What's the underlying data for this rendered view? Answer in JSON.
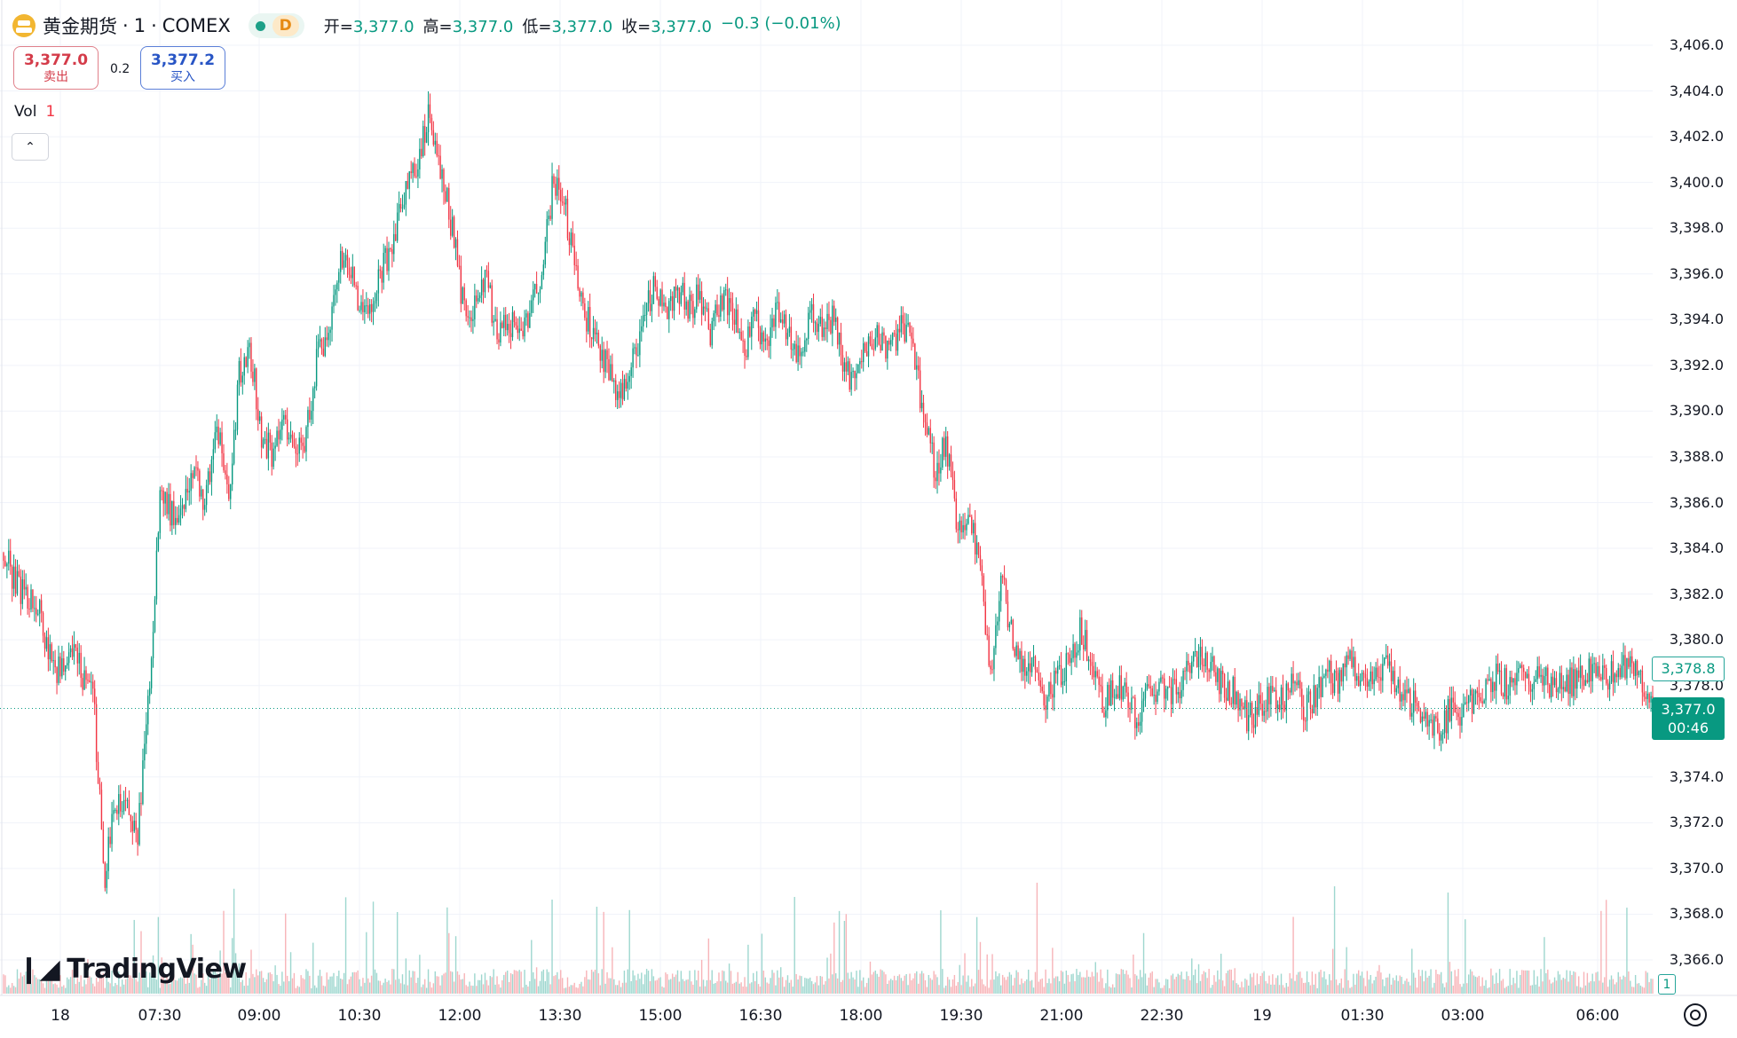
{
  "header": {
    "symbol": "黄金期货",
    "separator1": "·",
    "interval": "1",
    "separator2": "·",
    "exchange": "COMEX",
    "badge": "D",
    "ohlc": [
      {
        "key": "开=",
        "value": "3,377.0"
      },
      {
        "key": "高=",
        "value": "3,377.0"
      },
      {
        "key": "低=",
        "value": "3,377.0"
      },
      {
        "key": "收=",
        "value": "3,377.0"
      },
      {
        "key": "",
        "value": "−0.3 (−0.01%)"
      }
    ]
  },
  "trade": {
    "sell_price": "3,377.0",
    "sell_label": "卖出",
    "spread": "0.2",
    "buy_price": "3,377.2",
    "buy_label": "买入"
  },
  "volume_legend": {
    "label": "Vol",
    "value": "1"
  },
  "logo": {
    "text": "TradingView"
  },
  "price_labels": {
    "ref_price": "3,378.8",
    "current_price": "3,377.0",
    "countdown": "00:46",
    "volume_value": "1"
  },
  "colors": {
    "up": "#089981",
    "down": "#f23645",
    "up_vol": "#9ed7cf",
    "down_vol": "#f7b4b8",
    "grid": "#f0f3fa"
  },
  "chart_data": {
    "type": "candlestick",
    "yticks": [
      "3,406.0",
      "3,404.0",
      "3,402.0",
      "3,400.0",
      "3,398.0",
      "3,396.0",
      "3,394.0",
      "3,392.0",
      "3,390.0",
      "3,388.0",
      "3,386.0",
      "3,384.0",
      "3,382.0",
      "3,380.0",
      "3,378.0",
      "3,374.0",
      "3,372.0",
      "3,370.0",
      "3,368.0",
      "3,366.0"
    ],
    "ytick_values": [
      3406,
      3404,
      3402,
      3400,
      3398,
      3396,
      3394,
      3392,
      3390,
      3388,
      3386,
      3384,
      3382,
      3380,
      3378,
      3374,
      3372,
      3370,
      3368,
      3366
    ],
    "ylim": [
      3365,
      3407
    ],
    "xticks": [
      "18",
      "07:30",
      "09:00",
      "10:30",
      "12:00",
      "13:30",
      "15:00",
      "16:30",
      "18:00",
      "19:30",
      "21:00",
      "22:30",
      "19",
      "01:30",
      "03:00",
      "06:00"
    ],
    "xtick_times": [
      "06:00",
      "07:30",
      "09:00",
      "10:30",
      "12:00",
      "13:30",
      "15:00",
      "16:30",
      "18:00",
      "19:30",
      "21:00",
      "22:30",
      "00:00",
      "01:30",
      "03:00",
      "06:00"
    ],
    "price_path": [
      [
        "06:00",
        3383.8
      ],
      [
        "06:10",
        3382.5
      ],
      [
        "06:20",
        3382.0
      ],
      [
        "06:30",
        3381.5
      ],
      [
        "06:40",
        3379.5
      ],
      [
        "06:50",
        3378.5
      ],
      [
        "07:00",
        3379.5
      ],
      [
        "07:10",
        3378.5
      ],
      [
        "07:20",
        3377.5
      ],
      [
        "07:30",
        3369.5
      ],
      [
        "07:40",
        3373.0
      ],
      [
        "07:50",
        3372.5
      ],
      [
        "08:00",
        3371.5
      ],
      [
        "08:10",
        3378.0
      ],
      [
        "08:20",
        3386.5
      ],
      [
        "08:30",
        3385.5
      ],
      [
        "08:40",
        3386.0
      ],
      [
        "08:50",
        3387.5
      ],
      [
        "09:00",
        3386.0
      ],
      [
        "09:10",
        3389.5
      ],
      [
        "09:20",
        3386.0
      ],
      [
        "09:30",
        3391.5
      ],
      [
        "09:40",
        3392.5
      ],
      [
        "09:50",
        3389.0
      ],
      [
        "10:00",
        3388.0
      ],
      [
        "10:10",
        3389.5
      ],
      [
        "10:20",
        3388.5
      ],
      [
        "10:30",
        3389.0
      ],
      [
        "10:40",
        3392.5
      ],
      [
        "10:50",
        3393.0
      ],
      [
        "11:00",
        3397.0
      ],
      [
        "11:10",
        3396.0
      ],
      [
        "11:20",
        3394.0
      ],
      [
        "11:30",
        3395.0
      ],
      [
        "11:40",
        3396.5
      ],
      [
        "11:50",
        3398.0
      ],
      [
        "12:00",
        3400.0
      ],
      [
        "12:10",
        3401.0
      ],
      [
        "12:20",
        3403.0
      ],
      [
        "12:30",
        3400.5
      ],
      [
        "12:40",
        3398.0
      ],
      [
        "12:50",
        3394.5
      ],
      [
        "13:00",
        3394.5
      ],
      [
        "13:10",
        3396.0
      ],
      [
        "13:20",
        3393.0
      ],
      [
        "13:30",
        3394.0
      ],
      [
        "13:40",
        3393.5
      ],
      [
        "13:50",
        3394.5
      ],
      [
        "14:00",
        3396.0
      ],
      [
        "14:10",
        3400.0
      ],
      [
        "14:20",
        3399.0
      ],
      [
        "14:30",
        3396.0
      ],
      [
        "14:40",
        3394.0
      ],
      [
        "14:50",
        3393.0
      ],
      [
        "15:00",
        3391.5
      ],
      [
        "15:10",
        3390.5
      ],
      [
        "15:20",
        3392.0
      ],
      [
        "15:30",
        3394.0
      ],
      [
        "15:40",
        3395.5
      ],
      [
        "15:50",
        3394.0
      ],
      [
        "16:00",
        3395.5
      ],
      [
        "16:10",
        3394.5
      ],
      [
        "16:20",
        3395.0
      ],
      [
        "16:30",
        3393.5
      ],
      [
        "16:40",
        3395.0
      ],
      [
        "16:50",
        3394.5
      ],
      [
        "17:00",
        3392.5
      ],
      [
        "17:10",
        3394.0
      ],
      [
        "17:20",
        3393.0
      ],
      [
        "17:30",
        3394.5
      ],
      [
        "17:40",
        3393.5
      ],
      [
        "17:50",
        3392.5
      ],
      [
        "18:00",
        3394.5
      ],
      [
        "18:10",
        3393.5
      ],
      [
        "18:20",
        3394.0
      ],
      [
        "18:30",
        3392.0
      ],
      [
        "18:40",
        3391.0
      ],
      [
        "18:50",
        3393.0
      ],
      [
        "19:00",
        3393.5
      ],
      [
        "19:10",
        3392.5
      ],
      [
        "19:20",
        3394.0
      ],
      [
        "19:30",
        3393.0
      ],
      [
        "19:40",
        3389.5
      ],
      [
        "19:50",
        3387.5
      ],
      [
        "20:00",
        3388.5
      ],
      [
        "20:10",
        3385.0
      ],
      [
        "20:20",
        3385.5
      ],
      [
        "20:30",
        3383.5
      ],
      [
        "20:40",
        3378.5
      ],
      [
        "20:50",
        3382.5
      ],
      [
        "21:00",
        3380.0
      ],
      [
        "21:10",
        3379.0
      ],
      [
        "21:20",
        3378.5
      ],
      [
        "21:30",
        3377.5
      ],
      [
        "21:40",
        3378.5
      ],
      [
        "21:50",
        3379.0
      ],
      [
        "22:00",
        3380.5
      ],
      [
        "22:10",
        3379.0
      ],
      [
        "22:20",
        3377.0
      ],
      [
        "22:30",
        3378.0
      ],
      [
        "22:40",
        3377.5
      ],
      [
        "22:50",
        3376.5
      ],
      [
        "23:00",
        3377.5
      ],
      [
        "23:10",
        3378.0
      ],
      [
        "23:20",
        3377.5
      ],
      [
        "23:30",
        3378.0
      ],
      [
        "23:40",
        3379.5
      ],
      [
        "23:50",
        3379.0
      ],
      [
        "00:00",
        3378.5
      ],
      [
        "00:10",
        3378.0
      ],
      [
        "00:20",
        3377.5
      ],
      [
        "00:30",
        3376.5
      ],
      [
        "00:40",
        3377.0
      ],
      [
        "00:50",
        3377.5
      ],
      [
        "01:00",
        3377.5
      ],
      [
        "01:10",
        3378.0
      ],
      [
        "01:20",
        3377.0
      ],
      [
        "01:30",
        3377.5
      ],
      [
        "01:40",
        3378.5
      ],
      [
        "01:50",
        3378.0
      ],
      [
        "02:00",
        3379.0
      ],
      [
        "02:10",
        3378.5
      ],
      [
        "02:20",
        3378.5
      ],
      [
        "02:30",
        3379.0
      ],
      [
        "02:40",
        3378.0
      ],
      [
        "02:50",
        3377.5
      ],
      [
        "03:00",
        3377.0
      ],
      [
        "03:10",
        3376.5
      ],
      [
        "03:20",
        3376.0
      ],
      [
        "03:30",
        3377.0
      ],
      [
        "03:40",
        3376.5
      ],
      [
        "03:50",
        3377.5
      ],
      [
        "04:00",
        3378.0
      ],
      [
        "04:10",
        3378.5
      ],
      [
        "04:20",
        3378.0
      ],
      [
        "04:30",
        3378.5
      ],
      [
        "04:40",
        3378.0
      ],
      [
        "04:50",
        3378.5
      ],
      [
        "05:00",
        3378.0
      ],
      [
        "05:10",
        3378.5
      ],
      [
        "05:20",
        3378.0
      ],
      [
        "05:30",
        3378.5
      ],
      [
        "05:40",
        3379.0
      ],
      [
        "05:50",
        3378.5
      ],
      [
        "06:00",
        3378.5
      ],
      [
        "06:10",
        3379.0
      ],
      [
        "06:20",
        3378.5
      ],
      [
        "06:30",
        3377.0
      ]
    ],
    "last_price": 3377.0,
    "reference_price": 3378.8,
    "grid": true
  }
}
